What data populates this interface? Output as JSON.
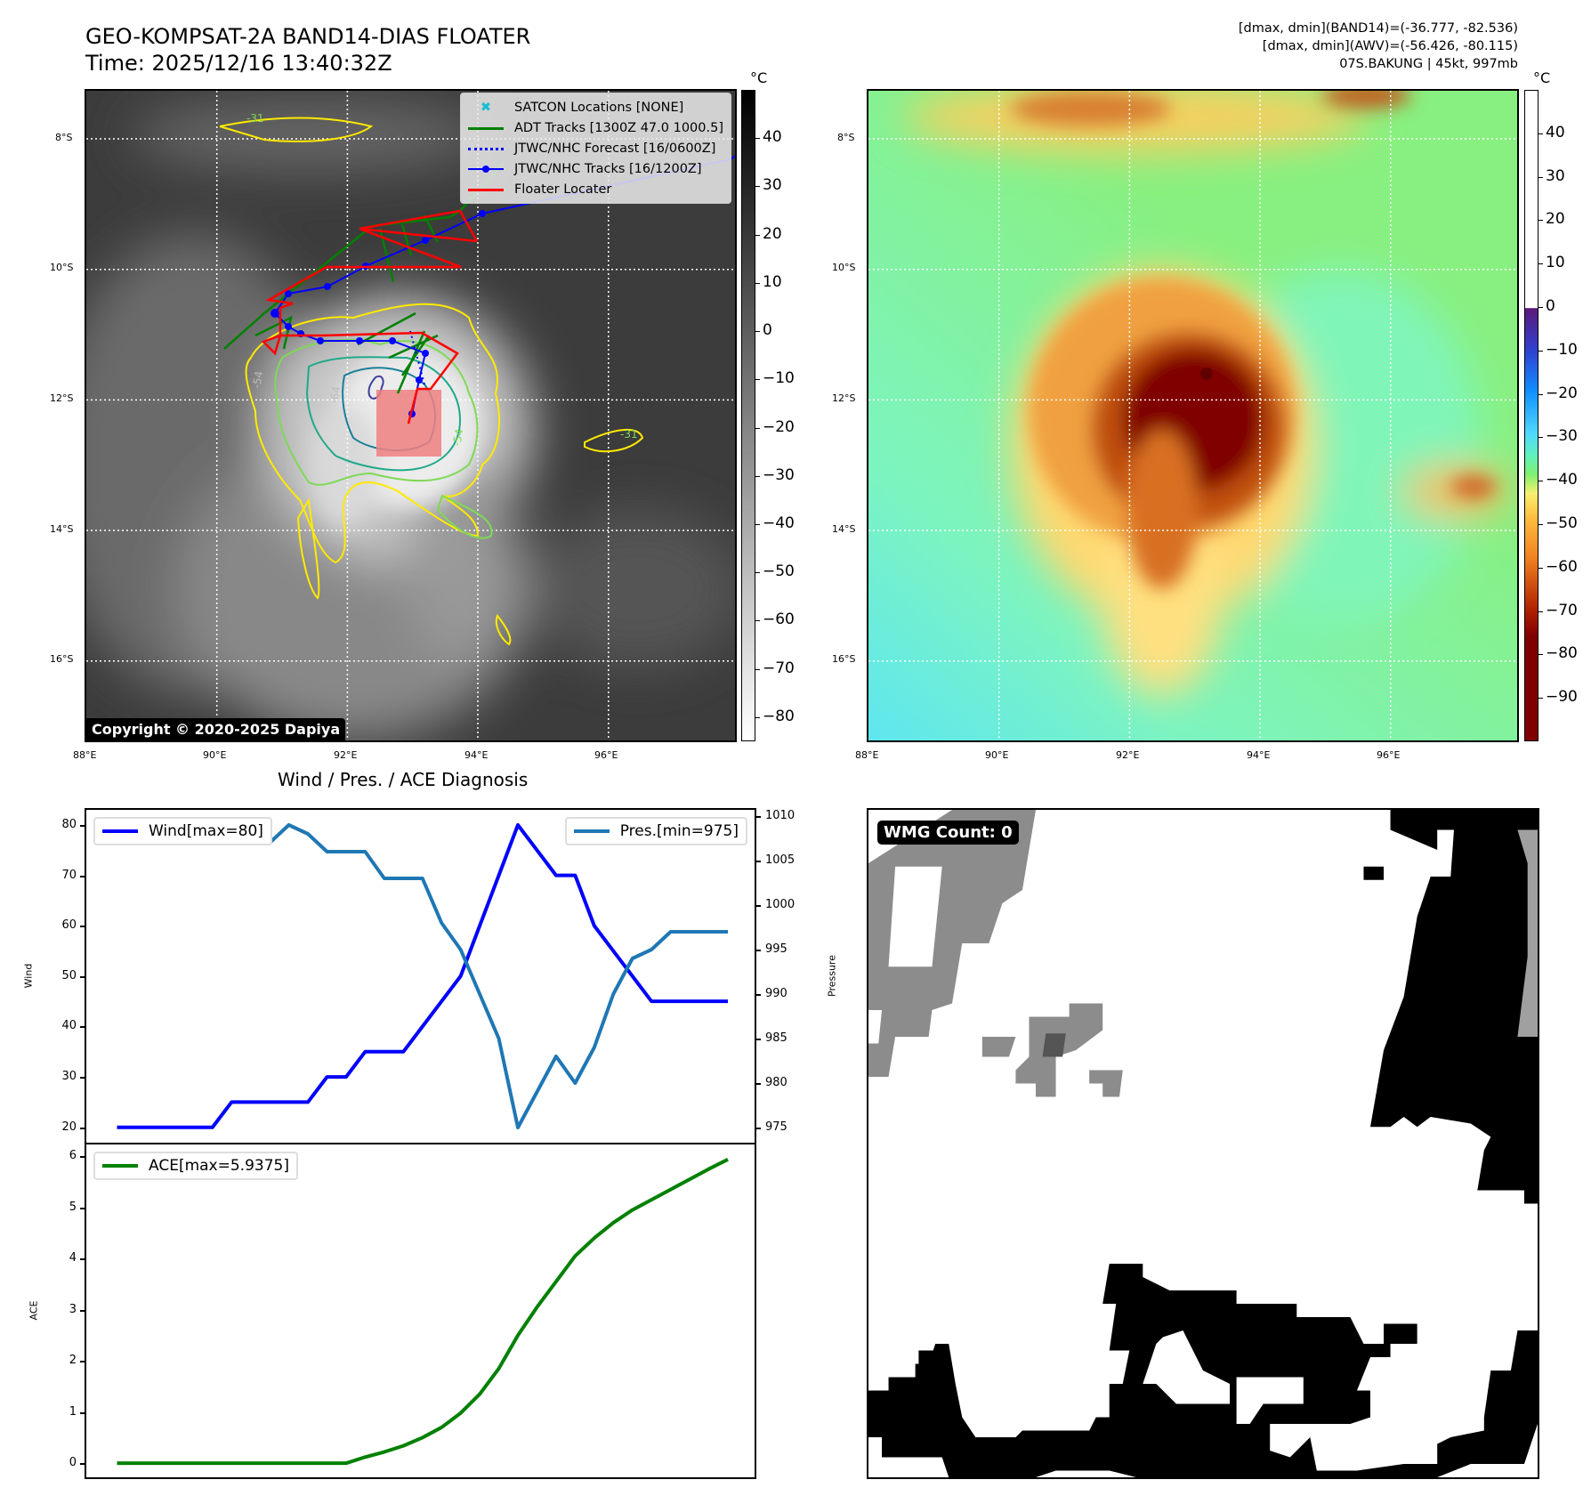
{
  "header": {
    "title": "GEO-KOMPSAT-2A BAND14-DIAS FLOATER",
    "time": "Time: 2025/12/16 13:40:32Z",
    "info_band14": "[dmax, dmin](BAND14)=(-36.777, -82.536)",
    "info_awv": "[dmax, dmin](AWV)=(-56.426, -80.115)",
    "storm": "07S.BAKUNG | 45kt, 997mb"
  },
  "maps": {
    "lat_labels": [
      "8°S",
      "10°S",
      "12°S",
      "14°S",
      "16°S"
    ],
    "lon_labels": [
      "88°E",
      "90°E",
      "92°E",
      "94°E",
      "96°E"
    ],
    "unit": "°C",
    "copyright": "Copyright © 2020-2025 Dapiya",
    "contour_labels": [
      "-54",
      "-64",
      "-54",
      "-31",
      "-31"
    ],
    "legend": [
      {
        "label": "SATCON Locations [NONE]",
        "color": "#17becf",
        "style": "x-marker"
      },
      {
        "label": "ADT Tracks [1300Z 47.0 1000.5]",
        "color": "#008000",
        "style": "line"
      },
      {
        "label": "JTWC/NHC Forecast [16/0600Z]",
        "color": "#0000ff",
        "style": "dotted"
      },
      {
        "label": "JTWC/NHC Tracks [16/1200Z]",
        "color": "#0000ff",
        "style": "line-dot"
      },
      {
        "label": "Floater Locater",
        "color": "#ff0000",
        "style": "line"
      }
    ],
    "gray_colorbar": {
      "ticks": [
        "40",
        "30",
        "20",
        "10",
        "0",
        "−10",
        "−20",
        "−30",
        "−40",
        "−50",
        "−60",
        "−70",
        "−80"
      ],
      "range": [
        50,
        -85
      ]
    },
    "awv_colorbar": {
      "ticks": [
        "40",
        "30",
        "20",
        "10",
        "0",
        "−10",
        "−20",
        "−30",
        "−40",
        "−50",
        "−60",
        "−70",
        "−80",
        "−90"
      ],
      "range": [
        50,
        -100
      ]
    }
  },
  "chart_data": [
    {
      "type": "line",
      "title": "Wind / Pres. / ACE Diagnosis",
      "x": [
        0,
        1,
        2,
        3,
        4,
        5,
        6,
        7,
        8,
        9,
        10,
        11,
        12,
        13,
        14,
        15,
        16,
        17,
        18,
        19,
        20,
        21,
        22,
        23,
        24,
        25,
        26,
        27,
        28,
        29,
        30,
        31,
        32
      ],
      "ylabel": "Wind",
      "y2label": "Pressure",
      "ylim": [
        16.6,
        83
      ],
      "y2lim": [
        973.1,
        1010.7
      ],
      "yticks": [
        "20",
        "30",
        "40",
        "50",
        "60",
        "70",
        "80"
      ],
      "y2ticks": [
        "975",
        "980",
        "985",
        "990",
        "995",
        "1000",
        "1005",
        "1010"
      ],
      "series": [
        {
          "name": "Wind[max=80]",
          "axis": "left",
          "color": "#0000ff",
          "values": [
            20,
            20,
            20,
            20,
            20,
            20,
            25,
            25,
            25,
            25,
            25,
            30,
            30,
            35,
            35,
            35,
            40,
            45,
            50,
            60,
            70,
            80,
            75,
            70,
            70,
            60,
            55,
            50,
            45,
            45,
            45,
            45,
            45
          ]
        },
        {
          "name": "Pres.[min=975]",
          "axis": "right",
          "color": "#1f77b4",
          "values": [
            1008,
            1008,
            1008,
            1008,
            1008,
            1008,
            1007,
            1007,
            1007,
            1009,
            1008,
            1006,
            1006,
            1006,
            1003,
            1003,
            1003,
            998,
            995,
            990,
            985,
            975,
            979,
            983,
            980,
            984,
            990,
            994,
            995,
            997,
            997,
            997,
            997
          ]
        }
      ]
    },
    {
      "type": "line",
      "x": [
        0,
        1,
        2,
        3,
        4,
        5,
        6,
        7,
        8,
        9,
        10,
        11,
        12,
        13,
        14,
        15,
        16,
        17,
        18,
        19,
        20,
        21,
        22,
        23,
        24,
        25,
        26,
        27,
        28,
        29,
        30,
        31,
        32
      ],
      "ylabel": "ACE",
      "ylim": [
        -0.31,
        6.23
      ],
      "yticks": [
        "0",
        "1",
        "2",
        "3",
        "4",
        "5",
        "6"
      ],
      "series": [
        {
          "name": "ACE[max=5.9375]",
          "color": "#008000",
          "values": [
            0,
            0,
            0,
            0,
            0,
            0,
            0,
            0,
            0,
            0,
            0,
            0,
            0,
            0.12,
            0.22,
            0.34,
            0.5,
            0.7,
            0.98,
            1.35,
            1.85,
            2.5,
            3.05,
            3.55,
            4.05,
            4.4,
            4.7,
            4.95,
            5.15,
            5.35,
            5.55,
            5.75,
            5.9375
          ]
        }
      ]
    }
  ],
  "wmg": {
    "label": "WMG Count: 0"
  }
}
